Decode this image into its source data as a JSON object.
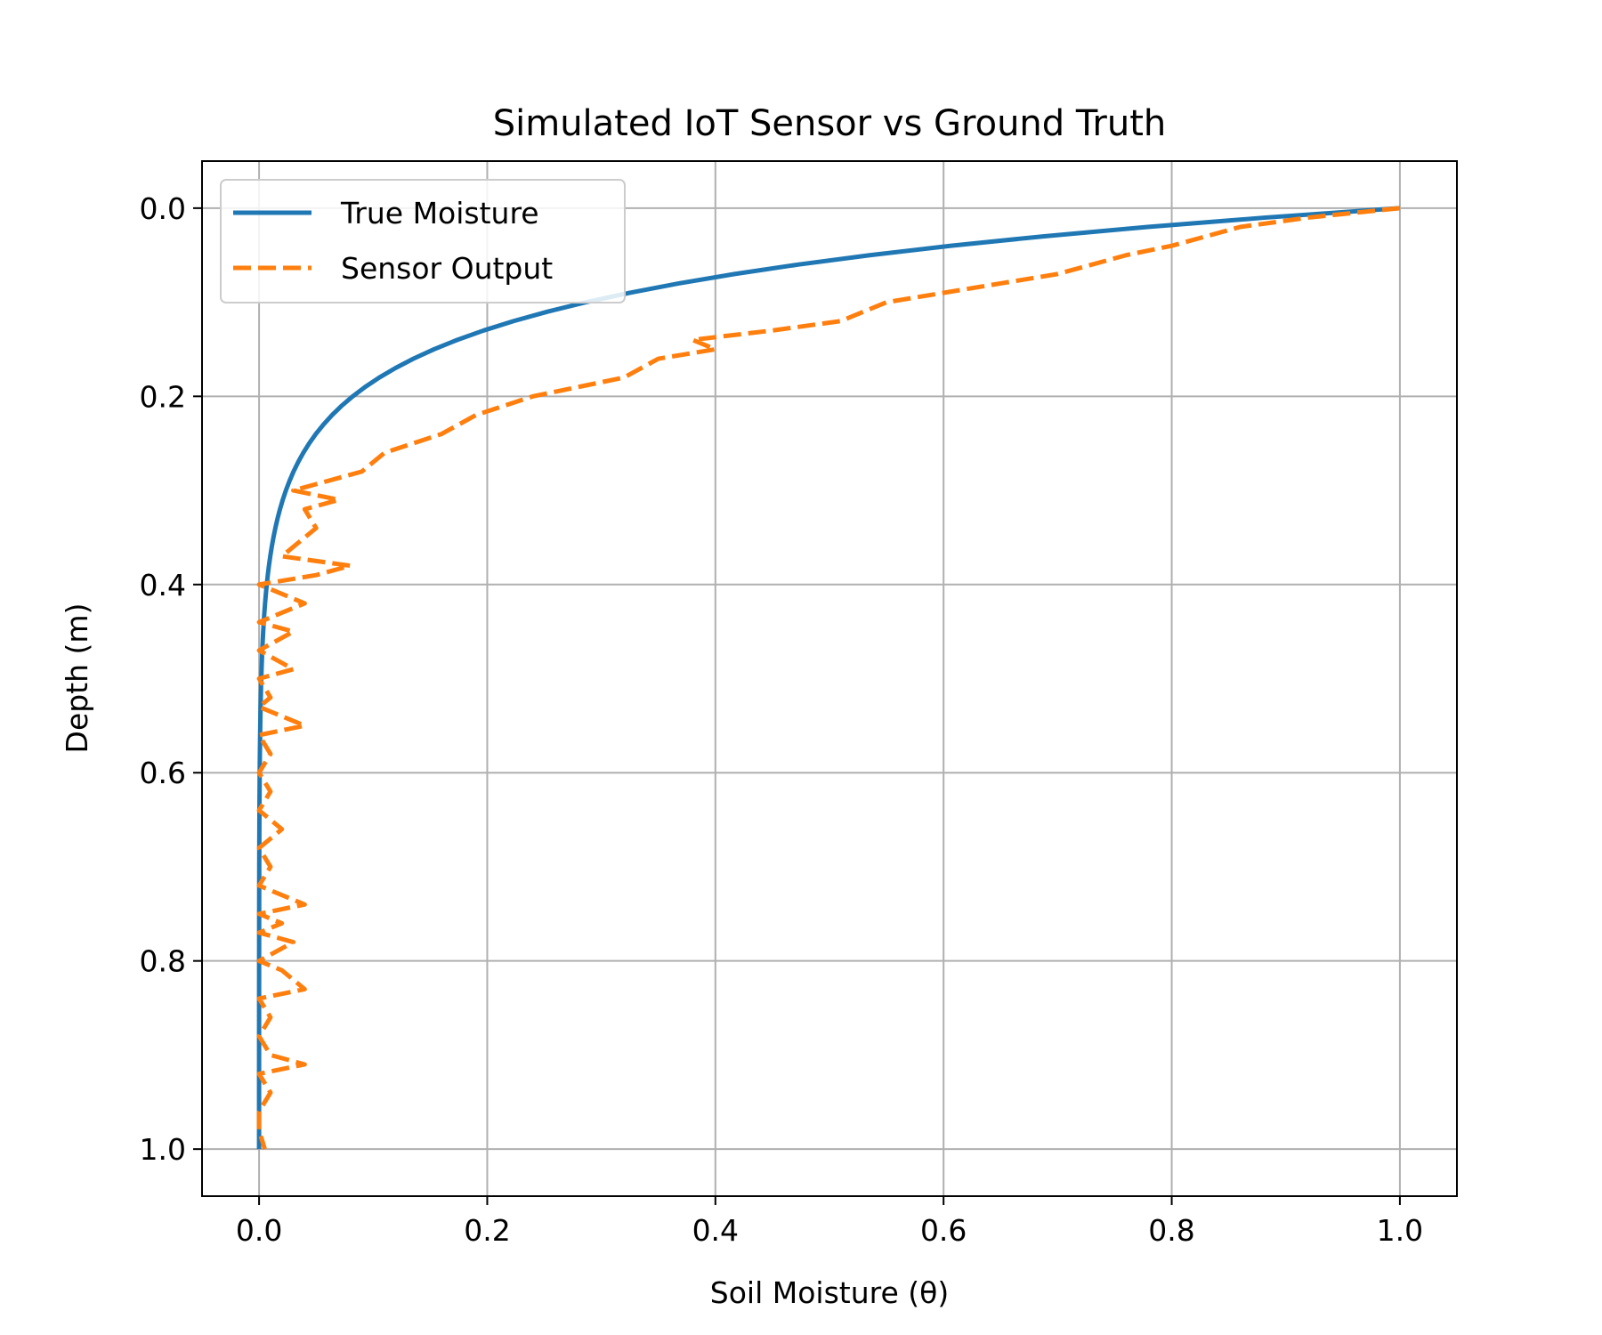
{
  "chart_data": {
    "type": "line",
    "title": "Simulated IoT Sensor vs Ground Truth",
    "xlabel": "Soil Moisture (θ)",
    "ylabel": "Depth (m)",
    "xlim": [
      -0.05,
      1.05
    ],
    "ylim": [
      1.05,
      -0.05
    ],
    "y_inverted": true,
    "grid": true,
    "legend_position": "top-left",
    "x_ticks": [
      0.0,
      0.2,
      0.4,
      0.6,
      0.8,
      1.0
    ],
    "x_tick_labels": [
      "0.0",
      "0.2",
      "0.4",
      "0.6",
      "0.8",
      "1.0"
    ],
    "y_ticks": [
      0.0,
      0.2,
      0.4,
      0.6,
      0.8,
      1.0
    ],
    "y_tick_labels": [
      "0.0",
      "0.2",
      "0.4",
      "0.6",
      "0.8",
      "1.0"
    ],
    "series": [
      {
        "name": "True Moisture",
        "color": "#1f77b4",
        "style": "solid",
        "model": "exponential",
        "decay_rate": 12.5,
        "depth_range": [
          0.0,
          1.0
        ],
        "samples": 101
      },
      {
        "name": "Sensor Output",
        "color": "#ff7f0e",
        "style": "dashed",
        "points": [
          [
            1.0,
            0.0
          ],
          [
            0.92,
            0.01
          ],
          [
            0.86,
            0.02
          ],
          [
            0.83,
            0.03
          ],
          [
            0.8,
            0.04
          ],
          [
            0.76,
            0.05
          ],
          [
            0.7,
            0.07
          ],
          [
            0.65,
            0.08
          ],
          [
            0.6,
            0.09
          ],
          [
            0.55,
            0.1
          ],
          [
            0.51,
            0.12
          ],
          [
            0.45,
            0.13
          ],
          [
            0.38,
            0.14
          ],
          [
            0.4,
            0.15
          ],
          [
            0.35,
            0.16
          ],
          [
            0.32,
            0.18
          ],
          [
            0.28,
            0.19
          ],
          [
            0.24,
            0.2
          ],
          [
            0.19,
            0.22
          ],
          [
            0.16,
            0.24
          ],
          [
            0.11,
            0.26
          ],
          [
            0.09,
            0.28
          ],
          [
            0.03,
            0.3
          ],
          [
            0.07,
            0.31
          ],
          [
            0.04,
            0.32
          ],
          [
            0.05,
            0.34
          ],
          [
            0.03,
            0.36
          ],
          [
            0.02,
            0.37
          ],
          [
            0.08,
            0.38
          ],
          [
            0.05,
            0.39
          ],
          [
            0.0,
            0.4
          ],
          [
            0.02,
            0.41
          ],
          [
            0.04,
            0.42
          ],
          [
            0.0,
            0.44
          ],
          [
            0.03,
            0.45
          ],
          [
            0.0,
            0.47
          ],
          [
            0.03,
            0.49
          ],
          [
            0.0,
            0.5
          ],
          [
            0.01,
            0.52
          ],
          [
            0.0,
            0.53
          ],
          [
            0.04,
            0.55
          ],
          [
            0.0,
            0.56
          ],
          [
            0.01,
            0.58
          ],
          [
            0.0,
            0.6
          ],
          [
            0.01,
            0.62
          ],
          [
            0.0,
            0.64
          ],
          [
            0.02,
            0.66
          ],
          [
            0.0,
            0.68
          ],
          [
            0.01,
            0.7
          ],
          [
            0.0,
            0.72
          ],
          [
            0.04,
            0.74
          ],
          [
            0.0,
            0.75
          ],
          [
            0.02,
            0.76
          ],
          [
            0.0,
            0.77
          ],
          [
            0.03,
            0.78
          ],
          [
            0.0,
            0.8
          ],
          [
            0.02,
            0.81
          ],
          [
            0.04,
            0.83
          ],
          [
            0.0,
            0.84
          ],
          [
            0.01,
            0.86
          ],
          [
            0.0,
            0.88
          ],
          [
            0.01,
            0.9
          ],
          [
            0.04,
            0.91
          ],
          [
            0.0,
            0.92
          ],
          [
            0.01,
            0.94
          ],
          [
            0.0,
            0.96
          ],
          [
            0.0,
            0.98
          ],
          [
            0.005,
            1.0
          ]
        ]
      }
    ]
  }
}
